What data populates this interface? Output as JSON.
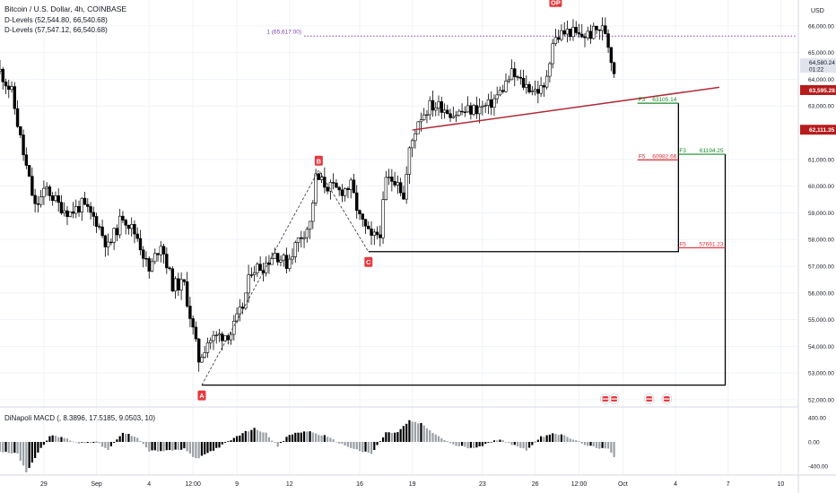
{
  "header": {
    "title": "Bitcoin / U.S. Dollar, 4h, COINBASE",
    "indicators": [
      "D-Levels (52,544.80, 66,540.68)",
      "D-Levels (57,547.12, 66,540.68)"
    ]
  },
  "currency": "USD",
  "colors": {
    "up": "#000000",
    "down": "#000000",
    "grid": "#f0f3fa",
    "fib_green": "#1b8a2a",
    "fib_red": "#e0303b",
    "trend": "#b02a37",
    "dlevel": "#7b3fb3",
    "price_tag": "#b71c1c",
    "label_bg": "#e5393f"
  },
  "chart_data": {
    "type": "candlestick",
    "y_range": [
      51800,
      66800
    ],
    "x_range": [
      "2024-08-26 12:00",
      "2024-10-11 00:00"
    ],
    "y_ticks": [
      {
        "value": 66000,
        "label": "66,000.00"
      },
      {
        "value": 65000,
        "label": "65,000.00"
      },
      {
        "value": 64000,
        "label": "64,000.00"
      },
      {
        "value": 63000,
        "label": "63,000.00"
      },
      {
        "value": 61000,
        "label": "61,000.00"
      },
      {
        "value": 60000,
        "label": "60,000.00"
      },
      {
        "value": 59000,
        "label": "59,000.00"
      },
      {
        "value": 58000,
        "label": "58,000.00"
      },
      {
        "value": 57000,
        "label": "57,000.00"
      },
      {
        "value": 56000,
        "label": "56,000.00"
      },
      {
        "value": 55000,
        "label": "55,000.00"
      },
      {
        "value": 54000,
        "label": "54,000.00"
      },
      {
        "value": 53000,
        "label": "53,000.00"
      },
      {
        "value": 52000,
        "label": "52,000.00"
      }
    ],
    "x_ticks": [
      {
        "t": "2024-08-29 00:00",
        "label": "29"
      },
      {
        "t": "2024-09-01 00:00",
        "label": "Sep"
      },
      {
        "t": "2024-09-04 00:00",
        "label": "4"
      },
      {
        "t": "2024-09-06 12:00",
        "label": "12:00"
      },
      {
        "t": "2024-09-09 00:00",
        "label": "9"
      },
      {
        "t": "2024-09-12 00:00",
        "label": "12"
      },
      {
        "t": "2024-09-16 00:00",
        "label": "16"
      },
      {
        "t": "2024-09-19 00:00",
        "label": "19"
      },
      {
        "t": "2024-09-23 00:00",
        "label": "23"
      },
      {
        "t": "2024-09-26 00:00",
        "label": "26"
      },
      {
        "t": "2024-09-28 12:00",
        "label": "12:00"
      },
      {
        "t": "2024-10-01 00:00",
        "label": "Oct"
      },
      {
        "t": "2024-10-04 00:00",
        "label": "4"
      },
      {
        "t": "2024-10-07 00:00",
        "label": "7"
      },
      {
        "t": "2024-10-10 00:00",
        "label": "10"
      }
    ],
    "price_path": [
      [
        "2024-08-26 12:00",
        64300
      ],
      [
        "2024-08-27 04:00",
        63500
      ],
      [
        "2024-08-27 20:00",
        61200
      ],
      [
        "2024-08-28 12:00",
        59200
      ],
      [
        "2024-08-29 04:00",
        59900
      ],
      [
        "2024-08-29 20:00",
        59300
      ],
      [
        "2024-08-30 12:00",
        59000
      ],
      [
        "2024-08-31 04:00",
        59300
      ],
      [
        "2024-09-01 00:00",
        58700
      ],
      [
        "2024-09-01 16:00",
        57700
      ],
      [
        "2024-09-02 12:00",
        58900
      ],
      [
        "2024-09-03 08:00",
        58100
      ],
      [
        "2024-09-04 00:00",
        56800
      ],
      [
        "2024-09-04 16:00",
        57900
      ],
      [
        "2024-09-05 08:00",
        56300
      ],
      [
        "2024-09-06 00:00",
        56300
      ],
      [
        "2024-09-06 12:00",
        54600
      ],
      [
        "2024-09-06 20:00",
        53500
      ],
      [
        "2024-09-07 08:00",
        54200
      ],
      [
        "2024-09-08 00:00",
        54400
      ],
      [
        "2024-09-08 16:00",
        54500
      ],
      [
        "2024-09-09 08:00",
        55500
      ],
      [
        "2024-09-09 20:00",
        56900
      ],
      [
        "2024-09-10 12:00",
        57000
      ],
      [
        "2024-09-11 04:00",
        57500
      ],
      [
        "2024-09-11 20:00",
        57100
      ],
      [
        "2024-09-12 12:00",
        58000
      ],
      [
        "2024-09-13 04:00",
        58600
      ],
      [
        "2024-09-13 12:00",
        60300
      ],
      [
        "2024-09-14 04:00",
        60000
      ],
      [
        "2024-09-14 20:00",
        59800
      ],
      [
        "2024-09-15 12:00",
        60000
      ],
      [
        "2024-09-16 00:00",
        58800
      ],
      [
        "2024-09-16 16:00",
        58000
      ],
      [
        "2024-09-17 04:00",
        58300
      ],
      [
        "2024-09-17 12:00",
        60200
      ],
      [
        "2024-09-18 04:00",
        60300
      ],
      [
        "2024-09-18 12:00",
        59500
      ],
      [
        "2024-09-18 20:00",
        61300
      ],
      [
        "2024-09-19 08:00",
        62500
      ],
      [
        "2024-09-20 00:00",
        63000
      ],
      [
        "2024-09-20 16:00",
        63000
      ],
      [
        "2024-09-21 08:00",
        62700
      ],
      [
        "2024-09-22 00:00",
        62800
      ],
      [
        "2024-09-22 16:00",
        62900
      ],
      [
        "2024-09-23 08:00",
        63000
      ],
      [
        "2024-09-24 00:00",
        63500
      ],
      [
        "2024-09-24 16:00",
        64200
      ],
      [
        "2024-09-25 08:00",
        63800
      ],
      [
        "2024-09-26 00:00",
        63600
      ],
      [
        "2024-09-26 12:00",
        63600
      ],
      [
        "2024-09-27 00:00",
        65400
      ],
      [
        "2024-09-27 12:00",
        65700
      ],
      [
        "2024-09-28 00:00",
        65800
      ],
      [
        "2024-09-28 12:00",
        65600
      ],
      [
        "2024-09-29 04:00",
        65700
      ],
      [
        "2024-09-29 16:00",
        65900
      ],
      [
        "2024-09-30 00:00",
        65800
      ],
      [
        "2024-09-30 08:00",
        64800
      ],
      [
        "2024-09-30 12:00",
        64300
      ]
    ],
    "last_price": {
      "value": 64580.24,
      "label": "64,580.24",
      "countdown": "01:22"
    },
    "price_tags": [
      {
        "value": 63595.28,
        "label": "63,595.28"
      },
      {
        "value": 62111.35,
        "label": "62,111.35"
      }
    ],
    "dlevel": {
      "value": 65617,
      "label": "1 (65,617.00)",
      "from": "2024-09-12 20:00"
    },
    "pivots": [
      {
        "name": "A",
        "t": "2024-09-07 00:00",
        "value": 52550
      },
      {
        "name": "B",
        "t": "2024-09-13 16:00",
        "value": 60600
      },
      {
        "name": "C",
        "t": "2024-09-16 12:00",
        "value": 57547
      },
      {
        "name": "OP",
        "t": "2024-09-27 04:00",
        "value": 66540
      }
    ],
    "fib_levels": [
      {
        "kind": "F3",
        "text": "F3",
        "price_label": "63105.14",
        "value": 63105.14,
        "t_start": "2024-10-01 20:00",
        "t_end": "2024-10-04 04:00",
        "color": "green"
      },
      {
        "kind": "F5",
        "text": "F5",
        "price_label": "60982.66",
        "value": 60982.66,
        "t_start": "2024-10-01 20:00",
        "t_end": "2024-10-04 04:00",
        "color": "red"
      },
      {
        "kind": "F3",
        "text": "F3",
        "price_label": "61194.25",
        "value": 61194.25,
        "t_start": "2024-10-04 04:00",
        "t_end": "2024-10-06 20:00",
        "color": "green"
      },
      {
        "kind": "F5",
        "text": "F5",
        "price_label": "57691.23",
        "value": 57691.23,
        "t_start": "2024-10-04 04:00",
        "t_end": "2024-10-06 20:00",
        "color": "red"
      }
    ],
    "projection_boxes": [
      {
        "t_start": "2024-09-16 12:00",
        "t_end": "2024-10-04 04:00",
        "top": 63105.14,
        "bottom": 57547
      },
      {
        "t_start": "2024-09-07 00:00",
        "t_end": "2024-10-06 20:00",
        "top": 61194.25,
        "bottom": 52550
      }
    ],
    "trendline": {
      "from": [
        "2024-09-19 00:00",
        62100
      ],
      "to": [
        "2024-10-06 12:00",
        63700
      ]
    },
    "events": [
      "2024-09-30 00:00",
      "2024-09-30 12:00",
      "2024-10-02 12:00",
      "2024-10-03 12:00"
    ],
    "macd": {
      "label": "DiNapoli MACD (, 8.3896, 17.5185, 9.0503, 10)",
      "y_range": [
        -520,
        520
      ],
      "ticks": [
        {
          "value": 400,
          "label": "400.00"
        },
        {
          "value": 0,
          "label": "0.00"
        },
        {
          "value": -400,
          "label": "-400.00"
        }
      ],
      "path": [
        [
          "2024-08-26 12:00",
          -150
        ],
        [
          "2024-08-27 12:00",
          -200
        ],
        [
          "2024-08-28 00:00",
          -500
        ],
        [
          "2024-08-28 20:00",
          -100
        ],
        [
          "2024-08-29 08:00",
          100
        ],
        [
          "2024-08-30 00:00",
          80
        ],
        [
          "2024-08-31 00:00",
          -20
        ],
        [
          "2024-09-01 00:00",
          0
        ],
        [
          "2024-09-01 16:00",
          -140
        ],
        [
          "2024-09-02 12:00",
          150
        ],
        [
          "2024-09-03 08:00",
          80
        ],
        [
          "2024-09-04 00:00",
          -150
        ],
        [
          "2024-09-05 00:00",
          -150
        ],
        [
          "2024-09-06 00:00",
          -120
        ],
        [
          "2024-09-06 16:00",
          -280
        ],
        [
          "2024-09-07 12:00",
          -160
        ],
        [
          "2024-09-08 12:00",
          0
        ],
        [
          "2024-09-09 08:00",
          150
        ],
        [
          "2024-09-10 00:00",
          220
        ],
        [
          "2024-09-10 16:00",
          150
        ],
        [
          "2024-09-11 08:00",
          -80
        ],
        [
          "2024-09-12 00:00",
          120
        ],
        [
          "2024-09-13 00:00",
          180
        ],
        [
          "2024-09-14 00:00",
          100
        ],
        [
          "2024-09-15 00:00",
          -40
        ],
        [
          "2024-09-16 00:00",
          -150
        ],
        [
          "2024-09-16 16:00",
          -200
        ],
        [
          "2024-09-17 12:00",
          150
        ],
        [
          "2024-09-18 04:00",
          160
        ],
        [
          "2024-09-18 20:00",
          350
        ],
        [
          "2024-09-19 12:00",
          300
        ],
        [
          "2024-09-20 08:00",
          120
        ],
        [
          "2024-09-21 08:00",
          -50
        ],
        [
          "2024-09-22 08:00",
          -100
        ],
        [
          "2024-09-23 00:00",
          -60
        ],
        [
          "2024-09-24 00:00",
          50
        ],
        [
          "2024-09-24 16:00",
          -40
        ],
        [
          "2024-09-25 12:00",
          -130
        ],
        [
          "2024-09-26 08:00",
          80
        ],
        [
          "2024-09-27 00:00",
          150
        ],
        [
          "2024-09-27 16:00",
          100
        ],
        [
          "2024-09-28 08:00",
          20
        ],
        [
          "2024-09-29 00:00",
          -60
        ],
        [
          "2024-09-29 16:00",
          -120
        ],
        [
          "2024-09-30 04:00",
          -100
        ],
        [
          "2024-09-30 12:00",
          -240
        ]
      ]
    }
  }
}
